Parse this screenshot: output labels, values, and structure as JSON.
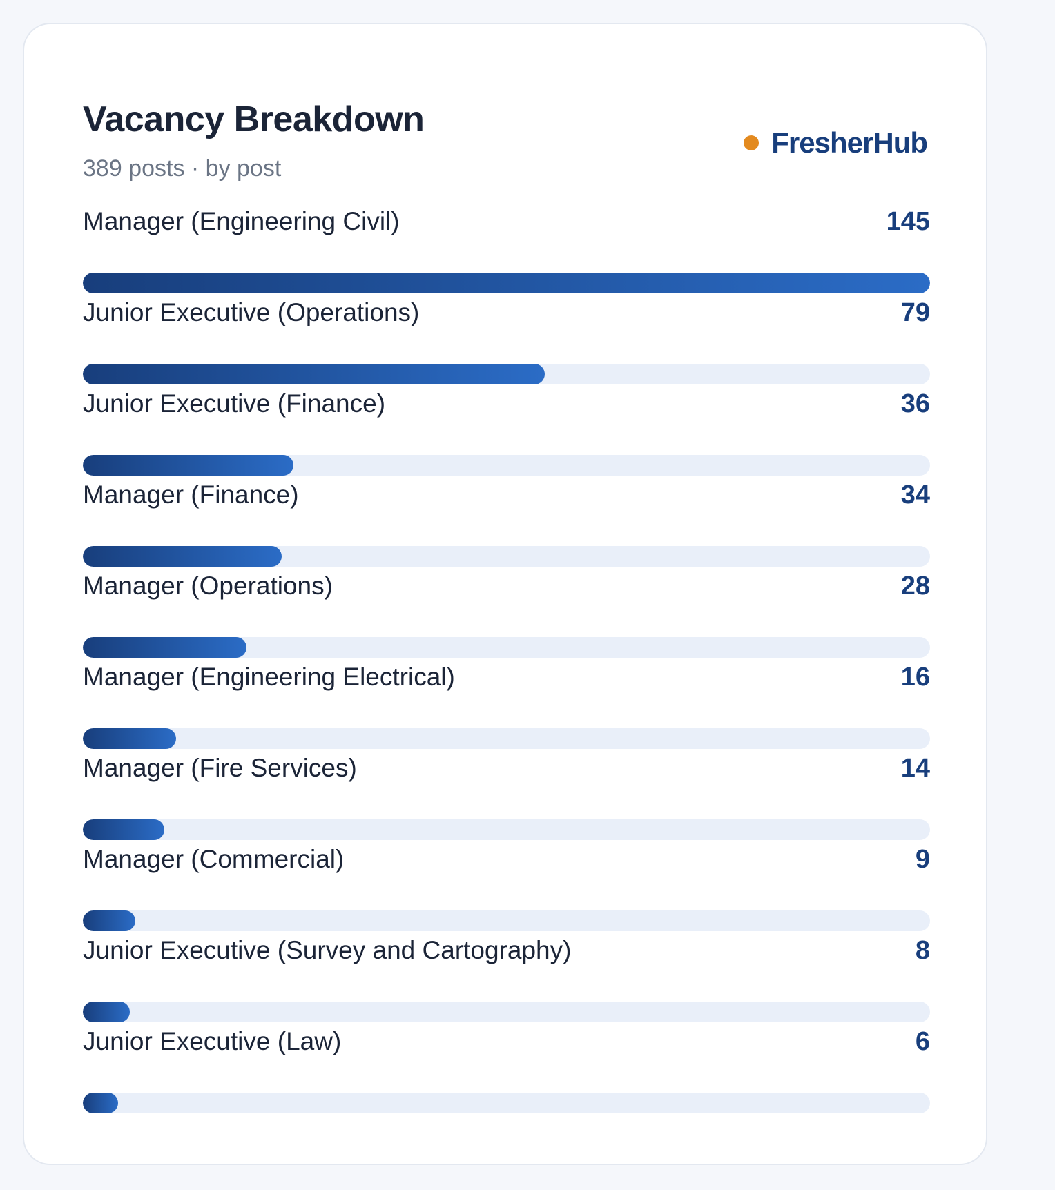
{
  "header": {
    "title": "Vacancy Breakdown",
    "subtitle": "389 posts · by post",
    "brand": "FresherHub"
  },
  "colors": {
    "accent_dot": "#e38a1f",
    "brand_text": "#183e7c",
    "bar_start": "#183e7c",
    "bar_end": "#2b6cc6",
    "track": "#e9eff9"
  },
  "chart_data": {
    "type": "bar",
    "orientation": "horizontal",
    "title": "Vacancy Breakdown",
    "subtitle": "389 posts · by post",
    "categories": [
      "Manager (Engineering Civil)",
      "Junior Executive (Operations)",
      "Junior Executive (Finance)",
      "Manager (Finance)",
      "Manager (Operations)",
      "Manager (Engineering Electrical)",
      "Manager (Fire Services)",
      "Manager (Commercial)",
      "Junior Executive (Survey and Cartography)",
      "Junior Executive (Law)"
    ],
    "values": [
      145,
      79,
      36,
      34,
      28,
      16,
      14,
      9,
      8,
      6
    ],
    "xlim": [
      0,
      145
    ],
    "grid": false,
    "legend": "none"
  }
}
